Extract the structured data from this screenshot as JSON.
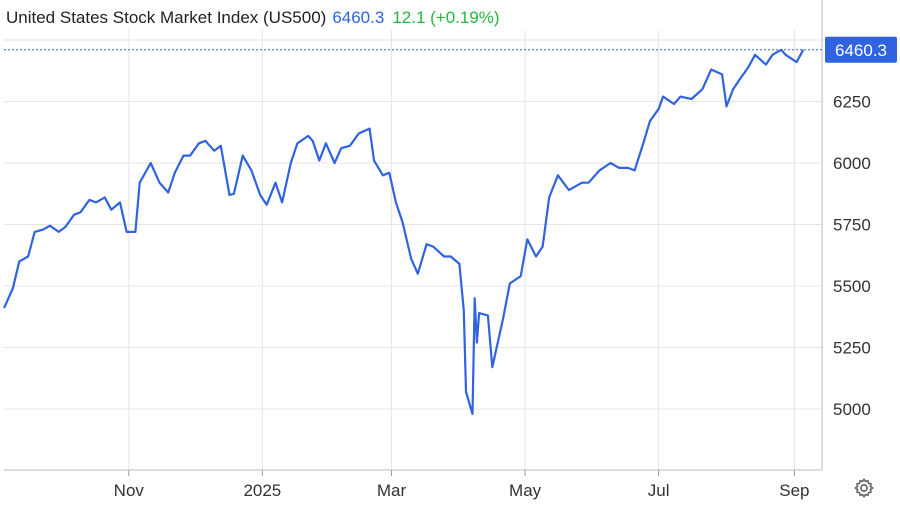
{
  "header": {
    "title": "United States Stock Market Index (US500)",
    "price": "6460.3",
    "change": "12.1 (+0.19%)"
  },
  "colors": {
    "line": "#2f63e0",
    "positive": "#26b63a",
    "grid": "#e6e6e6",
    "price_box": "#2f63e0"
  },
  "icons": {
    "settings": "gear-icon"
  },
  "chart_data": {
    "type": "line",
    "title": "United States Stock Market Index (US500)",
    "xlabel": "",
    "ylabel": "",
    "ylim": [
      4800,
      6560
    ],
    "y_ticks": [
      5000,
      5250,
      5500,
      5750,
      6000,
      6250
    ],
    "x_ticks": [
      {
        "date": "2024-11-01",
        "label": "Nov"
      },
      {
        "date": "2025-01-01",
        "label": "2025"
      },
      {
        "date": "2025-03-01",
        "label": "Mar"
      },
      {
        "date": "2025-05-01",
        "label": "May"
      },
      {
        "date": "2025-07-01",
        "label": "Jul"
      },
      {
        "date": "2025-09-01",
        "label": "Sep"
      }
    ],
    "x_range": [
      "2024-09-05",
      "2025-09-20"
    ],
    "last_value": 6460.3,
    "last_value_label": "6460.3",
    "grid": true,
    "series": [
      {
        "x": [
          "2024-09-05",
          "2024-09-09",
          "2024-09-12",
          "2024-09-16",
          "2024-09-19",
          "2024-09-23",
          "2024-09-26",
          "2024-09-30",
          "2024-10-03",
          "2024-10-07",
          "2024-10-10",
          "2024-10-14",
          "2024-10-17",
          "2024-10-21",
          "2024-10-24",
          "2024-10-28",
          "2024-10-31",
          "2024-11-04",
          "2024-11-06",
          "2024-11-11",
          "2024-11-15",
          "2024-11-19",
          "2024-11-22",
          "2024-11-26",
          "2024-11-29",
          "2024-12-03",
          "2024-12-06",
          "2024-12-10",
          "2024-12-13",
          "2024-12-17",
          "2024-12-19",
          "2024-12-23",
          "2024-12-27",
          "2024-12-31",
          "2025-01-03",
          "2025-01-07",
          "2025-01-10",
          "2025-01-14",
          "2025-01-17",
          "2025-01-22",
          "2025-01-24",
          "2025-01-27",
          "2025-01-30",
          "2025-02-03",
          "2025-02-06",
          "2025-02-10",
          "2025-02-14",
          "2025-02-19",
          "2025-02-21",
          "2025-02-25",
          "2025-02-28",
          "2025-03-03",
          "2025-03-06",
          "2025-03-10",
          "2025-03-13",
          "2025-03-17",
          "2025-03-20",
          "2025-03-25",
          "2025-03-28",
          "2025-04-01",
          "2025-04-03",
          "2025-04-04",
          "2025-04-07",
          "2025-04-08",
          "2025-04-09",
          "2025-04-10",
          "2025-04-14",
          "2025-04-16",
          "2025-04-21",
          "2025-04-24",
          "2025-04-29",
          "2025-05-02",
          "2025-05-06",
          "2025-05-09",
          "2025-05-12",
          "2025-05-16",
          "2025-05-21",
          "2025-05-27",
          "2025-05-30",
          "2025-06-04",
          "2025-06-09",
          "2025-06-13",
          "2025-06-17",
          "2025-06-20",
          "2025-06-24",
          "2025-06-27",
          "2025-07-01",
          "2025-07-03",
          "2025-07-08",
          "2025-07-11",
          "2025-07-16",
          "2025-07-21",
          "2025-07-25",
          "2025-07-30",
          "2025-08-01",
          "2025-08-04",
          "2025-08-07",
          "2025-08-11",
          "2025-08-14",
          "2025-08-19",
          "2025-08-22",
          "2025-08-26",
          "2025-08-28",
          "2025-09-02",
          "2025-09-05"
        ],
        "values": [
          5410,
          5490,
          5600,
          5620,
          5720,
          5730,
          5745,
          5720,
          5740,
          5790,
          5800,
          5850,
          5840,
          5860,
          5810,
          5840,
          5720,
          5720,
          5920,
          6000,
          5920,
          5880,
          5960,
          6030,
          6030,
          6080,
          6090,
          6050,
          6070,
          5870,
          5875,
          6030,
          5970,
          5870,
          5830,
          5920,
          5840,
          6000,
          6080,
          6110,
          6090,
          6010,
          6080,
          6000,
          6060,
          6070,
          6120,
          6140,
          6010,
          5950,
          5960,
          5840,
          5760,
          5610,
          5550,
          5670,
          5660,
          5620,
          5620,
          5590,
          5400,
          5070,
          4980,
          5450,
          5270,
          5390,
          5380,
          5170,
          5370,
          5510,
          5540,
          5690,
          5620,
          5660,
          5860,
          5950,
          5890,
          5920,
          5920,
          5970,
          6000,
          5980,
          5980,
          5970,
          6080,
          6170,
          6220,
          6270,
          6240,
          6270,
          6260,
          6300,
          6380,
          6360,
          6230,
          6300,
          6340,
          6390,
          6440,
          6400,
          6440,
          6460,
          6440,
          6410,
          6460
        ]
      }
    ]
  }
}
